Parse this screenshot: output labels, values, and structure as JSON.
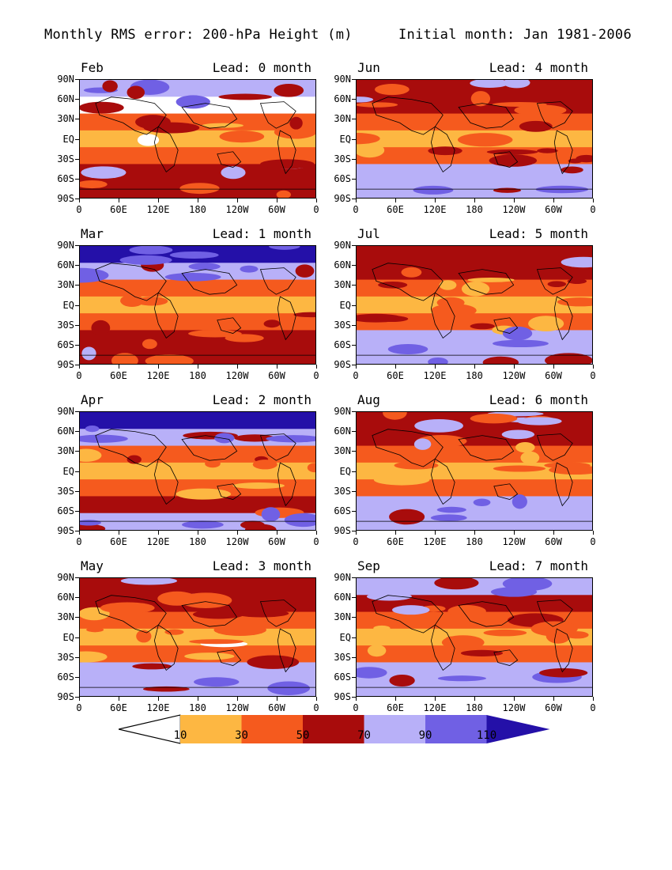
{
  "figure": {
    "title_left": "Monthly RMS error: 200-hPa Height (m)",
    "title_right": "Initial month: Jan 1981-2006"
  },
  "axes": {
    "lat_labels": [
      "90N",
      "60N",
      "30N",
      "EQ",
      "30S",
      "60S",
      "90S"
    ],
    "lon_labels": [
      "0",
      "60E",
      "120E",
      "180",
      "120W",
      "60W",
      "0"
    ]
  },
  "panels": [
    {
      "month": "Feb",
      "lead": "Lead: 0 month",
      "bands": [
        "light-purple",
        "red-orange",
        "orange",
        "yellow-with-white",
        "orange",
        "dark-red",
        "dark-red"
      ]
    },
    {
      "month": "Jun",
      "lead": "Lead: 4 month",
      "bands": [
        "dark-red",
        "dark-red",
        "orange",
        "yellow",
        "orange",
        "light-purple",
        "light-purple"
      ]
    },
    {
      "month": "Mar",
      "lead": "Lead: 1 month",
      "bands": [
        "dark-blue",
        "light-purple",
        "orange",
        "yellow",
        "orange",
        "dark-red",
        "dark-red"
      ]
    },
    {
      "month": "Jul",
      "lead": "Lead: 5 month",
      "bands": [
        "dark-red",
        "dark-red",
        "orange",
        "yellow",
        "orange",
        "light-purple",
        "light-purple"
      ]
    },
    {
      "month": "Apr",
      "lead": "Lead: 2 month",
      "bands": [
        "dark-blue",
        "light-purple",
        "orange",
        "yellow-with-white",
        "orange",
        "dark-red",
        "light-purple"
      ]
    },
    {
      "month": "Aug",
      "lead": "Lead: 6 month",
      "bands": [
        "dark-red",
        "dark-red",
        "orange",
        "yellow",
        "orange",
        "light-purple",
        "light-purple"
      ]
    },
    {
      "month": "May",
      "lead": "Lead: 3 month",
      "bands": [
        "dark-red",
        "dark-red",
        "orange",
        "yellow-with-white",
        "orange",
        "light-purple",
        "light-purple"
      ]
    },
    {
      "month": "Sep",
      "lead": "Lead: 7 month",
      "bands": [
        "light-purple",
        "dark-red",
        "orange",
        "yellow",
        "orange",
        "light-purple",
        "light-purple"
      ]
    }
  ],
  "colorbar": {
    "labels": [
      "10",
      "30",
      "50",
      "70",
      "90",
      "110"
    ],
    "colors": [
      "#ffffff",
      "#fdb742",
      "#f55a1e",
      "#a80c0c",
      "#b8b0f8",
      "#7060e4",
      "#2410a8"
    ]
  },
  "palette": {
    "white": "#ffffff",
    "yellow": "#fdb742",
    "orange": "#f55a1e",
    "dark-red": "#a80c0c",
    "light-purple": "#b8b0f8",
    "mid-purple": "#7060e4",
    "dark-blue": "#2410a8"
  }
}
